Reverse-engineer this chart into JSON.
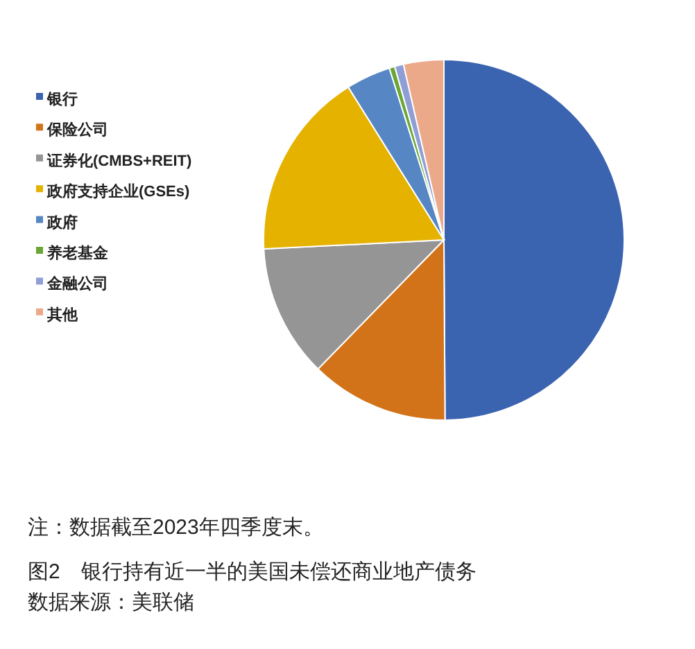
{
  "chart_data": {
    "type": "pie",
    "title": "图2　银行持有近一半的美国未偿还商业地产债务",
    "categories": [
      "银行",
      "保险公司",
      "证券化(CMBS+REIT)",
      "政府支持企业(GSEs)",
      "政府",
      "养老基金",
      "金融公司",
      "其他"
    ],
    "values": [
      49.9,
      12.4,
      11.9,
      16.9,
      4.0,
      0.5,
      0.8,
      3.6
    ],
    "colors": [
      "#3a63b0",
      "#d2731a",
      "#959595",
      "#e5b200",
      "#5687c4",
      "#6aa634",
      "#8f9fd6",
      "#eba98a"
    ],
    "legend": "left",
    "annotations": [
      "注：数据截至2023年四季度末。",
      "数据来源：美联储"
    ]
  }
}
